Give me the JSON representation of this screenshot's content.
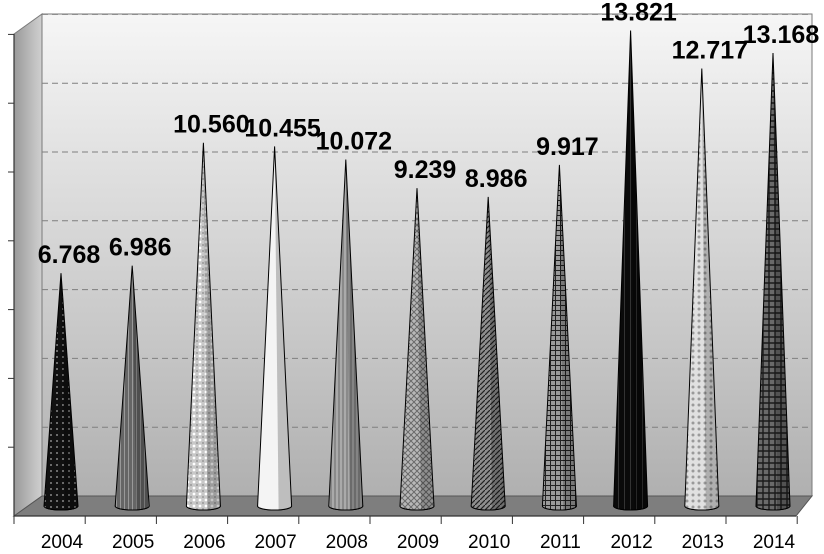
{
  "chart_data": {
    "type": "bar",
    "bar_shape": "cone",
    "categories": [
      "2004",
      "2005",
      "2006",
      "2007",
      "2008",
      "2009",
      "2010",
      "2011",
      "2012",
      "2013",
      "2014"
    ],
    "values": [
      6.768,
      6.986,
      10.56,
      10.455,
      10.072,
      9.239,
      8.986,
      9.917,
      13.821,
      12.717,
      13.168
    ],
    "value_labels": [
      "6.768",
      "6.986",
      "10.560",
      "10.455",
      "10.072",
      "9.239",
      "8.986",
      "9.917",
      "13.821",
      "12.717",
      "13.168"
    ],
    "title": "",
    "xlabel": "",
    "ylabel": "",
    "ylim": [
      0,
      14
    ],
    "grid": true,
    "legend": "none",
    "colors": {
      "wall_light": "#f4f4f4",
      "wall_dark": "#b4b4b4",
      "floor": "#808080",
      "gridline": "#7f7f7f",
      "cones": [
        "#1a1a1a",
        "#6e6e6e",
        "#c8c8c8",
        "#f2f2f2",
        "#8c8c8c",
        "#b0b0b0",
        "#5a5a5a",
        "#777777",
        "#0d0d0d",
        "#d8d8d8",
        "#4a4a4a"
      ]
    }
  }
}
